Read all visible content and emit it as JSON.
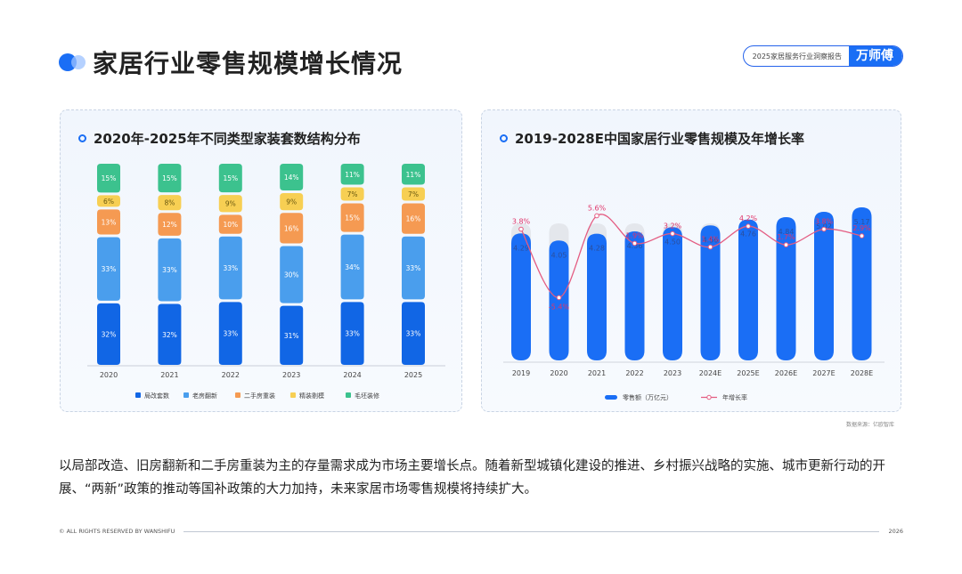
{
  "header": {
    "title": "家居行业零售规模增长情况",
    "report_label": "2025家居服务行业洞察报告",
    "brand_logo": "万师傅"
  },
  "body_text": "以局部改造、旧房翻新和二手房重装为主的存量需求成为市场主要增长点。随着新型城镇化建设的推进、乡村振兴战略的实施、城市更新行动的开展、“两新”政策的推动等国补政策的大力加持，未来家居市场零售规模将持续扩大。",
  "source_note": "数据来源：亿欧智库",
  "footer": {
    "copyright": "© ALL RIGHTS RESERVED BY WANSHIFU",
    "year": "2026"
  },
  "colors": {
    "local": "#1166e5",
    "old": "#4a9eed",
    "second": "#f59a52",
    "fine": "#f7cf53",
    "rough": "#3cc28e",
    "bar": "#1a6ef5",
    "bar_bg": "#e4e7ec",
    "line": "#e45c82"
  },
  "chart_data": [
    {
      "type": "bar",
      "stacked": "percent",
      "title": "2020年-2025年不同类型家装套数结构分布",
      "categories": [
        "2020",
        "2021",
        "2022",
        "2023",
        "2024",
        "2025"
      ],
      "series": [
        {
          "name": "局改套数",
          "values": [
            32,
            32,
            33,
            31,
            33,
            33
          ],
          "labels": [
            "32%",
            "32%",
            "33%",
            "31%",
            "33%",
            "33%"
          ],
          "color": "#1166e5"
        },
        {
          "name": "老房翻新",
          "values": [
            33,
            33,
            33,
            30,
            34,
            33
          ],
          "labels": [
            "33%",
            "33%",
            "33%",
            "30%",
            "34%",
            "33%"
          ],
          "color": "#4a9eed"
        },
        {
          "name": "二手房重装",
          "values": [
            13,
            12,
            10,
            16,
            15,
            16
          ],
          "labels": [
            "13%",
            "12%",
            "10%",
            "16%",
            "15%",
            "16%"
          ],
          "color": "#f59a52"
        },
        {
          "name": "精装剔模",
          "values": [
            6,
            8,
            9,
            9,
            7,
            7
          ],
          "labels": [
            "6%",
            "8%",
            "9%",
            "9%",
            "7%",
            "7%"
          ],
          "color": "#f7cf53"
        },
        {
          "name": "毛坯装修",
          "values": [
            15,
            15,
            15,
            14,
            11,
            11
          ],
          "labels": [
            "15%",
            "15%",
            "15%",
            "14%",
            "11%",
            "11%"
          ],
          "color": "#3cc28e"
        }
      ],
      "legend_position": "bottom"
    },
    {
      "type": "bar",
      "title": "2019-2028E中国家居行业零售规模及年增长率",
      "categories": [
        "2019",
        "2020",
        "2021",
        "2022",
        "2023",
        "2024E",
        "2025E",
        "2026E",
        "2027E",
        "2028E"
      ],
      "series": [
        {
          "name": "零售额（万亿元）",
          "type": "bar",
          "values": [
            4.29,
            4.05,
            4.28,
            4.36,
            4.5,
            4.56,
            4.76,
            4.84,
            5.02,
            5.17
          ],
          "labels": [
            "4.29",
            "4.05",
            "4.28",
            "4.36",
            "4.50",
            "4.56",
            "4.76",
            "4.84",
            "5.02",
            "5.17"
          ]
        },
        {
          "name": "年增长率",
          "type": "line",
          "values": [
            3.8,
            -5.4,
            5.6,
            1.9,
            3.2,
            1.4,
            4.2,
            1.7,
            3.8,
            2.9
          ],
          "labels": [
            "3.8%",
            "-5.4%",
            "5.6%",
            "1.9%",
            "3.2%",
            "1.4%",
            "4.2%",
            "1.7%",
            "3.8%",
            "2.9%"
          ]
        }
      ],
      "legend_position": "bottom"
    }
  ]
}
